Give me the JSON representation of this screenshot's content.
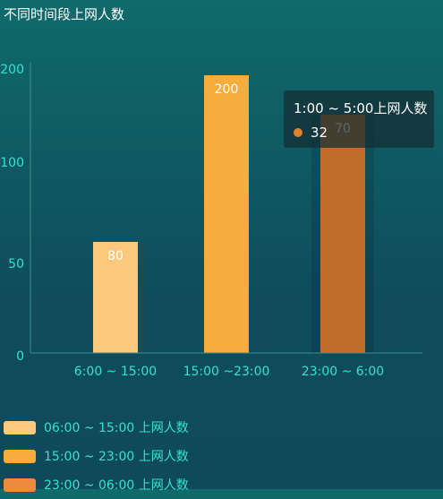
{
  "chart_data": {
    "type": "bar",
    "title": "不同时间段上网人数",
    "categories": [
      "6:00 ~ 15:00",
      "15:00 ~23:00",
      "23:00 ~ 6:00"
    ],
    "values": [
      80,
      200,
      70
    ],
    "bar_colors": [
      "#fcc97c",
      "#f6ad3b",
      "#c26c2c"
    ],
    "y_ticks": [
      0,
      50,
      100,
      200
    ],
    "ylim": [
      0,
      200
    ],
    "legend": [
      {
        "label": "06:00 ~ 15:00 上网人数",
        "color": "#fccb7f"
      },
      {
        "label": "15:00 ~ 23:00 上网人数",
        "color": "#f6ad3b"
      },
      {
        "label": "23:00 ~ 06:00 上网人数",
        "color": "#ee8a3e"
      }
    ],
    "tooltip": {
      "title": "1:00 ~ 5:00上网人数",
      "value": "32",
      "dot_color": "#e0812d"
    }
  }
}
